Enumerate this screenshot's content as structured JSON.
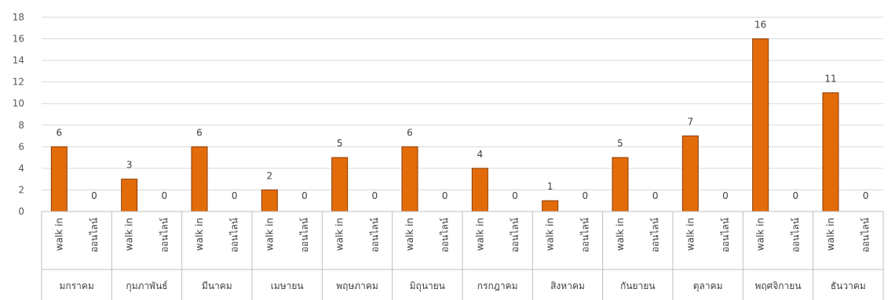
{
  "chart_data": {
    "type": "bar",
    "title": "",
    "xlabel": "",
    "ylabel": "",
    "ylim": [
      0,
      18
    ],
    "yticks": [
      0,
      2,
      4,
      6,
      8,
      10,
      12,
      14,
      16,
      18
    ],
    "grid": true,
    "legend": "none",
    "bar_color": "#E36C0A",
    "bar_edge_color": "#8B3A00",
    "grid_color": "#D9D9D9",
    "axis_color": "#BFBFBF",
    "sub_categories": [
      "walk in",
      "ออนไลน์"
    ],
    "groups": [
      {
        "name": "มกราคม",
        "values": [
          6,
          0
        ]
      },
      {
        "name": "กุมภาพันธ์",
        "values": [
          3,
          0
        ]
      },
      {
        "name": "มีนาคม",
        "values": [
          6,
          0
        ]
      },
      {
        "name": "เมษายน",
        "values": [
          2,
          0
        ]
      },
      {
        "name": "พฤษภาคม",
        "values": [
          5,
          0
        ]
      },
      {
        "name": "มิถุนายน",
        "values": [
          6,
          0
        ]
      },
      {
        "name": "กรกฎาคม",
        "values": [
          4,
          0
        ]
      },
      {
        "name": "สิงหาคม",
        "values": [
          1,
          0
        ]
      },
      {
        "name": "กันยายน",
        "values": [
          5,
          0
        ]
      },
      {
        "name": "ตุลาคม",
        "values": [
          7,
          0
        ]
      },
      {
        "name": "พฤศจิกายน",
        "values": [
          16,
          0
        ]
      },
      {
        "name": "ธันวาคม",
        "values": [
          11,
          0
        ]
      }
    ]
  }
}
